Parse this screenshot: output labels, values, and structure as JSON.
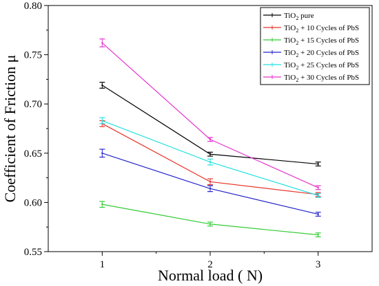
{
  "chart_data": {
    "type": "line",
    "title": "",
    "xlabel": "Normal load ( N)",
    "ylabel": "Coefficient of Friction μ",
    "x": [
      1,
      2,
      3
    ],
    "xlim": [
      0.5,
      3.5
    ],
    "ylim": [
      0.55,
      0.8
    ],
    "xticks": [
      "1",
      "2",
      "3"
    ],
    "yticks": [
      "0.55",
      "0.60",
      "0.65",
      "0.70",
      "0.75",
      "0.80"
    ],
    "ytick_values": [
      0.55,
      0.6,
      0.65,
      0.7,
      0.75,
      0.8
    ],
    "grid": false,
    "legend_position": "top-right",
    "series": [
      {
        "name": "TiO2 pure",
        "legend": {
          "pre": "TiO",
          "sub": "2",
          "post": " pure"
        },
        "color": "#000000",
        "values": [
          0.719,
          0.649,
          0.639
        ],
        "errors": [
          0.003,
          0.002,
          0.002
        ]
      },
      {
        "name": "TiO2 + 10 Cycles of PbS",
        "legend": {
          "pre": "TiO",
          "sub": "2",
          "post": " + 10 Cycles of PbS"
        },
        "color": "#e8342a",
        "values": [
          0.68,
          0.621,
          0.608
        ],
        "errors": [
          0.003,
          0.003,
          0.002
        ]
      },
      {
        "name": "TiO2 + 15 Cycles of PbS",
        "legend": {
          "pre": "TiO",
          "sub": "2",
          "post": " + 15 Cycles of PbS"
        },
        "color": "#33cc33",
        "values": [
          0.598,
          0.578,
          0.567
        ],
        "errors": [
          0.003,
          0.002,
          0.002
        ]
      },
      {
        "name": "TiO2 + 20 Cycles of PbS",
        "legend": {
          "pre": "TiO",
          "sub": "2",
          "post": " + 20 Cycles of PbS"
        },
        "color": "#2222cc",
        "values": [
          0.65,
          0.614,
          0.588
        ],
        "errors": [
          0.004,
          0.003,
          0.002
        ]
      },
      {
        "name": "TiO2 + 25 Cycles of PbS",
        "legend": {
          "pre": "TiO",
          "sub": "2",
          "post": " + 25 Cycles of PbS"
        },
        "color": "#22e0e0",
        "values": [
          0.683,
          0.641,
          0.607
        ],
        "errors": [
          0.003,
          0.003,
          0.002
        ]
      },
      {
        "name": "TiO2 + 30 Cycles of PbS",
        "legend": {
          "pre": "TiO",
          "sub": "2",
          "post": " + 30 Cycles of PbS"
        },
        "color": "#e633cc",
        "values": [
          0.762,
          0.664,
          0.615
        ],
        "errors": [
          0.004,
          0.002,
          0.002
        ]
      }
    ]
  }
}
